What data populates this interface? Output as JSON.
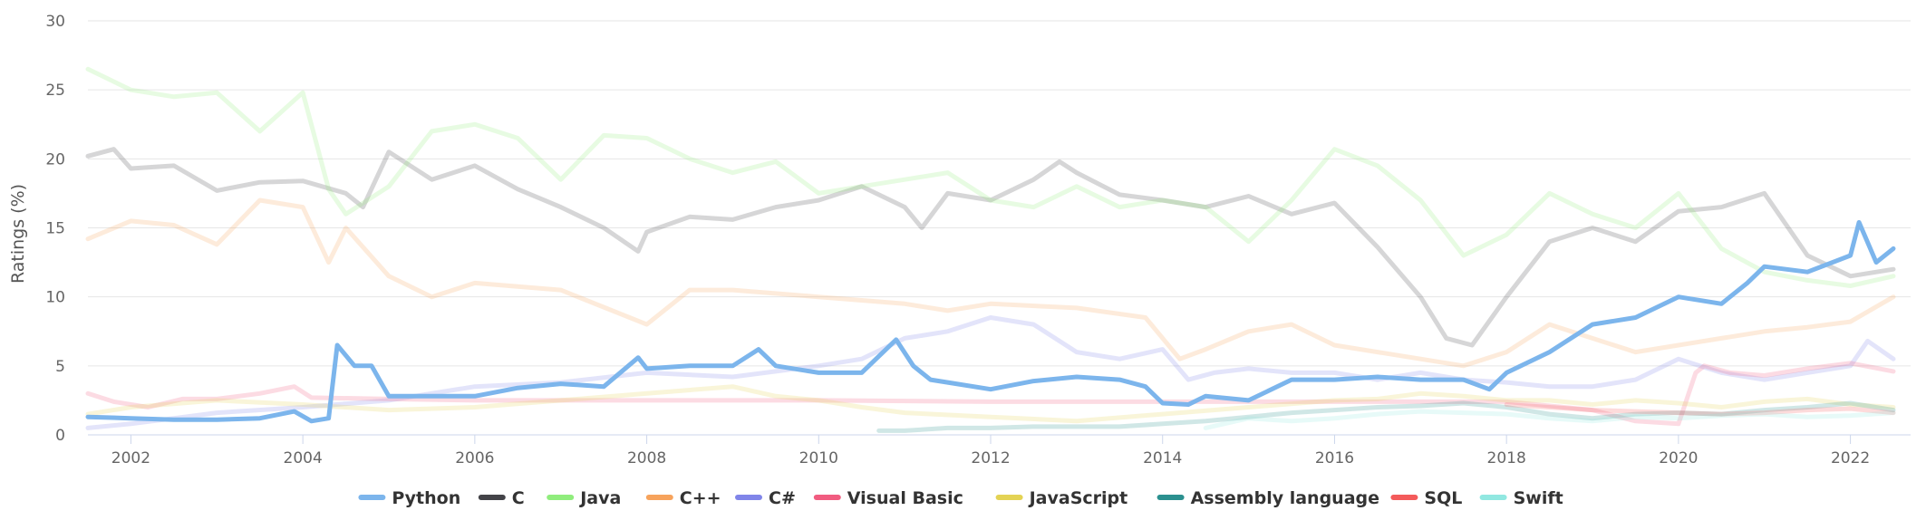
{
  "chart_data": {
    "type": "line",
    "title": "",
    "xlabel": "",
    "ylabel": "Ratings (%)",
    "xlim": [
      2001.5,
      2022.7
    ],
    "ylim": [
      0,
      30
    ],
    "yticks": [
      0,
      5,
      10,
      15,
      20,
      25,
      30
    ],
    "xticks": [
      2002,
      2004,
      2006,
      2008,
      2010,
      2012,
      2014,
      2016,
      2018,
      2020,
      2022
    ],
    "grid": true,
    "legend_position": "bottom-center",
    "highlighted_series": "Python",
    "series": [
      {
        "name": "Python",
        "color": "#7cb5ec",
        "x": [
          2001.5,
          2002.0,
          2002.5,
          2003.0,
          2003.5,
          2003.9,
          2004.1,
          2004.3,
          2004.4,
          2004.6,
          2004.8,
          2005.0,
          2005.5,
          2006.0,
          2006.5,
          2007.0,
          2007.5,
          2007.9,
          2008.0,
          2008.5,
          2009.0,
          2009.3,
          2009.5,
          2010.0,
          2010.5,
          2010.9,
          2011.1,
          2011.3,
          2011.5,
          2012.0,
          2012.5,
          2013.0,
          2013.5,
          2013.8,
          2014.0,
          2014.3,
          2014.5,
          2015.0,
          2015.5,
          2016.0,
          2016.5,
          2017.0,
          2017.5,
          2017.8,
          2018.0,
          2018.5,
          2019.0,
          2019.5,
          2020.0,
          2020.5,
          2020.8,
          2021.0,
          2021.5,
          2022.0,
          2022.1,
          2022.3,
          2022.5
        ],
        "values": [
          1.3,
          1.2,
          1.1,
          1.1,
          1.2,
          1.7,
          1.0,
          1.2,
          6.5,
          5.0,
          5.0,
          2.8,
          2.8,
          2.8,
          3.4,
          3.7,
          3.5,
          5.6,
          4.8,
          5.0,
          5.0,
          6.2,
          5.0,
          4.5,
          4.5,
          6.9,
          5.0,
          4.0,
          3.8,
          3.3,
          3.9,
          4.2,
          4.0,
          3.5,
          2.3,
          2.2,
          2.8,
          2.5,
          4.0,
          4.0,
          4.2,
          4.0,
          4.0,
          3.3,
          4.5,
          6.0,
          8.0,
          8.5,
          10.0,
          9.5,
          11.0,
          12.2,
          11.8,
          13.0,
          15.4,
          12.5,
          13.5
        ]
      },
      {
        "name": "C",
        "color": "#434348",
        "x": [
          2001.5,
          2001.8,
          2002.0,
          2002.5,
          2003.0,
          2003.5,
          2004.0,
          2004.5,
          2004.7,
          2005.0,
          2005.5,
          2006.0,
          2006.5,
          2007.0,
          2007.5,
          2007.9,
          2008.0,
          2008.5,
          2009.0,
          2009.5,
          2010.0,
          2010.5,
          2011.0,
          2011.2,
          2011.5,
          2012.0,
          2012.5,
          2012.8,
          2013.0,
          2013.5,
          2014.0,
          2014.5,
          2015.0,
          2015.5,
          2016.0,
          2016.5,
          2017.0,
          2017.3,
          2017.6,
          2018.0,
          2018.5,
          2019.0,
          2019.5,
          2020.0,
          2020.5,
          2021.0,
          2021.5,
          2022.0,
          2022.5
        ],
        "values": [
          20.2,
          20.7,
          19.3,
          19.5,
          17.7,
          18.3,
          18.4,
          17.5,
          16.5,
          20.5,
          18.5,
          19.5,
          17.8,
          16.5,
          15.0,
          13.3,
          14.7,
          15.8,
          15.6,
          16.5,
          17.0,
          18.0,
          16.5,
          15.0,
          17.5,
          17.0,
          18.5,
          19.8,
          19.0,
          17.4,
          17.0,
          16.5,
          17.3,
          16.0,
          16.8,
          13.6,
          10.0,
          7.0,
          6.5,
          10.0,
          14.0,
          15.0,
          14.0,
          16.2,
          16.5,
          17.5,
          13.0,
          11.5,
          12.0
        ]
      },
      {
        "name": "Java",
        "color": "#90ed7d",
        "x": [
          2001.5,
          2002.0,
          2002.5,
          2003.0,
          2003.5,
          2004.0,
          2004.3,
          2004.5,
          2005.0,
          2005.5,
          2006.0,
          2006.5,
          2007.0,
          2007.5,
          2008.0,
          2008.5,
          2009.0,
          2009.5,
          2010.0,
          2010.5,
          2011.0,
          2011.5,
          2012.0,
          2012.5,
          2013.0,
          2013.5,
          2014.0,
          2014.5,
          2015.0,
          2015.5,
          2016.0,
          2016.5,
          2017.0,
          2017.5,
          2018.0,
          2018.5,
          2019.0,
          2019.5,
          2020.0,
          2020.5,
          2021.0,
          2021.5,
          2022.0,
          2022.5
        ],
        "values": [
          26.5,
          25.0,
          24.5,
          24.8,
          22.0,
          24.8,
          17.8,
          16.0,
          18.0,
          22.0,
          22.5,
          21.5,
          18.5,
          21.7,
          21.5,
          20.0,
          19.0,
          19.8,
          17.5,
          18.0,
          18.5,
          19.0,
          17.0,
          16.5,
          18.0,
          16.5,
          17.0,
          16.5,
          14.0,
          17.0,
          20.7,
          19.5,
          17.0,
          13.0,
          14.5,
          17.5,
          16.0,
          15.0,
          17.5,
          13.5,
          11.8,
          11.2,
          10.8,
          11.5
        ]
      },
      {
        "name": "C++",
        "color": "#f7a35c",
        "x": [
          2001.5,
          2002.0,
          2002.5,
          2003.0,
          2003.5,
          2004.0,
          2004.3,
          2004.5,
          2005.0,
          2005.5,
          2006.0,
          2007.0,
          2008.0,
          2008.5,
          2009.0,
          2010.0,
          2011.0,
          2011.5,
          2012.0,
          2013.0,
          2013.8,
          2014.2,
          2014.5,
          2015.0,
          2015.5,
          2016.0,
          2016.5,
          2017.0,
          2017.5,
          2018.0,
          2018.5,
          2019.0,
          2019.5,
          2020.0,
          2020.5,
          2021.0,
          2021.5,
          2022.0,
          2022.5
        ],
        "values": [
          14.2,
          15.5,
          15.2,
          13.8,
          17.0,
          16.5,
          12.5,
          15.0,
          11.5,
          10.0,
          11.0,
          10.5,
          8.0,
          10.5,
          10.5,
          10.0,
          9.5,
          9.0,
          9.5,
          9.2,
          8.5,
          5.5,
          6.2,
          7.5,
          8.0,
          6.5,
          6.0,
          5.5,
          5.0,
          6.0,
          8.0,
          7.0,
          6.0,
          6.5,
          7.0,
          7.5,
          7.8,
          8.2,
          10.0
        ]
      },
      {
        "name": "C#",
        "color": "#8085e9",
        "x": [
          2001.5,
          2002.0,
          2003.0,
          2004.0,
          2005.0,
          2006.0,
          2007.0,
          2008.0,
          2009.0,
          2010.0,
          2010.5,
          2011.0,
          2011.5,
          2012.0,
          2012.5,
          2013.0,
          2013.5,
          2014.0,
          2014.3,
          2014.6,
          2015.0,
          2015.5,
          2016.0,
          2016.5,
          2017.0,
          2017.5,
          2018.0,
          2018.5,
          2019.0,
          2019.5,
          2020.0,
          2020.5,
          2021.0,
          2021.5,
          2022.0,
          2022.2,
          2022.5
        ],
        "values": [
          0.5,
          0.8,
          1.6,
          2.0,
          2.5,
          3.5,
          3.8,
          4.5,
          4.2,
          5.0,
          5.5,
          7.0,
          7.5,
          8.5,
          8.0,
          6.0,
          5.5,
          6.2,
          4.0,
          4.5,
          4.8,
          4.5,
          4.5,
          4.0,
          4.5,
          4.0,
          3.8,
          3.5,
          3.5,
          4.0,
          5.5,
          4.5,
          4.0,
          4.5,
          5.0,
          6.8,
          5.5
        ]
      },
      {
        "name": "Visual Basic",
        "color": "#f15c80",
        "x": [
          2001.5,
          2001.8,
          2002.2,
          2002.6,
          2003.0,
          2003.5,
          2003.9,
          2004.1,
          2005.0,
          2006.0,
          2008.0,
          2010.0,
          2012.0,
          2014.0,
          2016.0,
          2018.0,
          2019.0,
          2019.5,
          2020.0,
          2020.2,
          2020.3,
          2020.6,
          2021.0,
          2021.5,
          2022.0,
          2022.5
        ],
        "values": [
          3.0,
          2.4,
          2.0,
          2.6,
          2.6,
          3.0,
          3.5,
          2.7,
          2.6,
          2.5,
          2.5,
          2.5,
          2.4,
          2.4,
          2.4,
          2.4,
          1.8,
          1.0,
          0.8,
          4.5,
          5.0,
          4.5,
          4.3,
          4.8,
          5.2,
          4.6
        ]
      },
      {
        "name": "JavaScript",
        "color": "#e4d354",
        "x": [
          2001.5,
          2002.0,
          2003.0,
          2004.0,
          2005.0,
          2006.0,
          2007.0,
          2008.0,
          2009.0,
          2009.5,
          2010.0,
          2010.5,
          2011.0,
          2012.0,
          2013.0,
          2014.0,
          2015.0,
          2016.0,
          2016.5,
          2017.0,
          2017.5,
          2018.0,
          2018.5,
          2019.0,
          2019.5,
          2020.0,
          2020.5,
          2021.0,
          2021.5,
          2022.0,
          2022.5
        ],
        "values": [
          1.5,
          2.0,
          2.5,
          2.2,
          1.8,
          2.0,
          2.5,
          3.0,
          3.5,
          2.8,
          2.5,
          2.0,
          1.6,
          1.3,
          1.0,
          1.5,
          2.0,
          2.5,
          2.6,
          3.0,
          2.8,
          2.5,
          2.5,
          2.2,
          2.5,
          2.3,
          2.0,
          2.4,
          2.6,
          2.2,
          2.0
        ]
      },
      {
        "name": "Assembly language",
        "color": "#2b908f",
        "x": [
          2010.7,
          2011.0,
          2011.5,
          2012.0,
          2012.5,
          2013.0,
          2013.5,
          2014.0,
          2014.5,
          2015.0,
          2015.5,
          2016.0,
          2016.5,
          2017.0,
          2017.5,
          2018.0,
          2018.5,
          2019.0,
          2019.5,
          2020.0,
          2020.5,
          2021.0,
          2021.5,
          2022.0,
          2022.5
        ],
        "values": [
          0.3,
          0.3,
          0.5,
          0.5,
          0.6,
          0.6,
          0.6,
          0.8,
          1.0,
          1.3,
          1.6,
          1.8,
          2.0,
          2.1,
          2.3,
          2.0,
          1.5,
          1.2,
          1.5,
          1.6,
          1.5,
          1.8,
          2.0,
          2.3,
          1.8
        ]
      },
      {
        "name": "SQL",
        "color": "#f45b5b",
        "x": [
          2018.0,
          2018.5,
          2019.0,
          2019.5,
          2020.0,
          2020.5,
          2021.0,
          2021.5,
          2022.0,
          2022.5
        ],
        "values": [
          2.2,
          2.0,
          1.8,
          1.7,
          1.6,
          1.5,
          1.6,
          1.8,
          1.9,
          1.6
        ]
      },
      {
        "name": "Swift",
        "color": "#91e8e1",
        "x": [
          2014.5,
          2015.0,
          2015.5,
          2016.0,
          2016.5,
          2017.0,
          2017.5,
          2018.0,
          2018.5,
          2019.0,
          2019.5,
          2020.0,
          2020.5,
          2021.0,
          2021.5,
          2022.0,
          2022.5
        ],
        "values": [
          0.5,
          1.2,
          1.0,
          1.2,
          1.5,
          1.7,
          1.6,
          1.5,
          1.2,
          1.0,
          1.3,
          1.2,
          1.4,
          1.5,
          1.3,
          1.4,
          1.6
        ]
      }
    ]
  }
}
